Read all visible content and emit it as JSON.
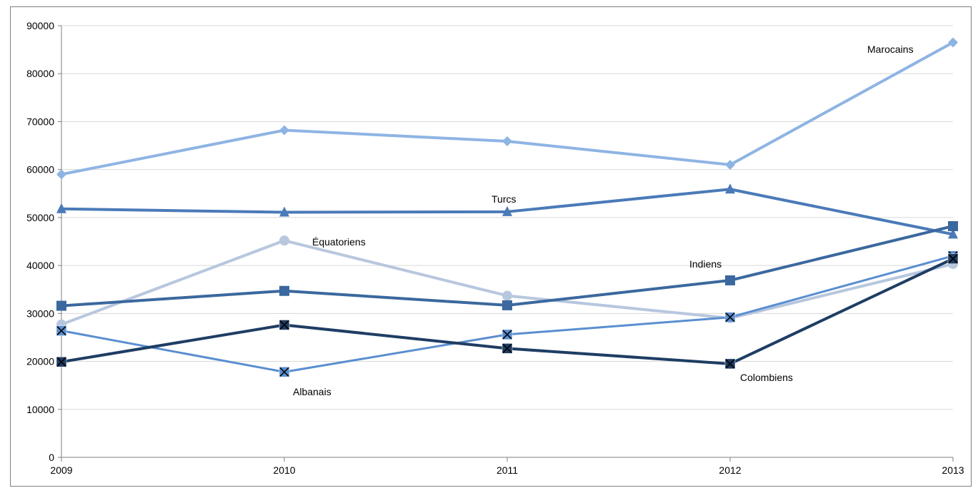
{
  "chart_data": {
    "type": "line",
    "title": "",
    "xlabel": "",
    "ylabel": "",
    "categories": [
      "2009",
      "2010",
      "2011",
      "2012",
      "2013"
    ],
    "ylim": [
      0,
      90000
    ],
    "yticks": [
      "0",
      "10000",
      "20000",
      "30000",
      "40000",
      "50000",
      "60000",
      "70000",
      "80000",
      "90000"
    ],
    "grid": true,
    "legend": "none (series labelled inline)",
    "series": [
      {
        "name": "Marocains",
        "values": [
          59000,
          68200,
          65900,
          61000,
          86500
        ],
        "color": "#8eb4e3",
        "marker": "diamond",
        "width": 4
      },
      {
        "name": "Turcs",
        "values": [
          51800,
          51100,
          51200,
          55900,
          46500
        ],
        "color": "#4a7ab8",
        "marker": "triangle",
        "width": 4
      },
      {
        "name": "Équatoriens",
        "values": [
          27700,
          45200,
          33700,
          29000,
          40300
        ],
        "color": "#b7c7de",
        "marker": "circle",
        "width": 4
      },
      {
        "name": "Indiens",
        "values": [
          31600,
          34700,
          31700,
          36900,
          48200
        ],
        "color": "#3b689e",
        "marker": "square",
        "width": 4
      },
      {
        "name": "Albanais",
        "values": [
          26400,
          17800,
          25600,
          29200,
          42000
        ],
        "color": "#5a8ed0",
        "marker": "xsquare",
        "width": 3
      },
      {
        "name": "Colombiens",
        "values": [
          19900,
          27600,
          22700,
          19500,
          41400
        ],
        "color": "#1f3d64",
        "marker": "xsquare",
        "width": 4
      }
    ],
    "annotations": [
      {
        "text": "Marocains"
      },
      {
        "text": "Turcs"
      },
      {
        "text": "Équatoriens"
      },
      {
        "text": "Indiens"
      },
      {
        "text": "Albanais"
      },
      {
        "text": "Colombiens"
      }
    ],
    "colors": {
      "grid": "#d9d9d9",
      "axis": "#7f7f7f",
      "text": "#000000"
    }
  }
}
